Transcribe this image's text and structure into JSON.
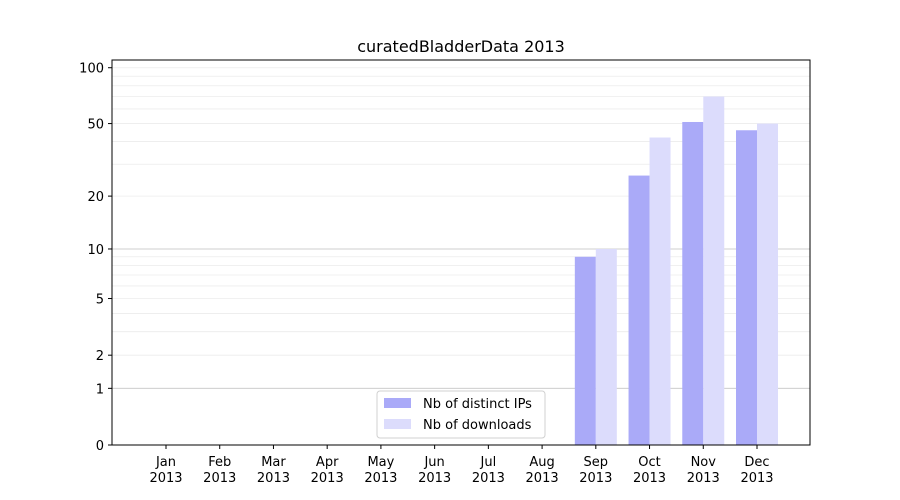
{
  "chart_data": {
    "type": "bar",
    "title": "curatedBladderData 2013",
    "xlabel": "",
    "ylabel": "",
    "y_scale": "log(1+y)",
    "ylim": [
      0,
      110
    ],
    "yticks": [
      0,
      1,
      2,
      5,
      10,
      20,
      50,
      100
    ],
    "categories": [
      [
        "Jan",
        "2013"
      ],
      [
        "Feb",
        "2013"
      ],
      [
        "Mar",
        "2013"
      ],
      [
        "Apr",
        "2013"
      ],
      [
        "May",
        "2013"
      ],
      [
        "Jun",
        "2013"
      ],
      [
        "Jul",
        "2013"
      ],
      [
        "Aug",
        "2013"
      ],
      [
        "Sep",
        "2013"
      ],
      [
        "Oct",
        "2013"
      ],
      [
        "Nov",
        "2013"
      ],
      [
        "Dec",
        "2013"
      ]
    ],
    "series": [
      {
        "name": "Nb of distinct IPs",
        "color": "#aaaaf8",
        "values": [
          0,
          0,
          0,
          0,
          0,
          0,
          0,
          0,
          9,
          26,
          51,
          46
        ]
      },
      {
        "name": "Nb of downloads",
        "color": "#dcdcfc",
        "values": [
          0,
          0,
          0,
          0,
          0,
          0,
          0,
          0,
          10,
          42,
          70,
          50
        ]
      }
    ],
    "legend": "lower-center",
    "grid": "major and minor horizontal"
  }
}
